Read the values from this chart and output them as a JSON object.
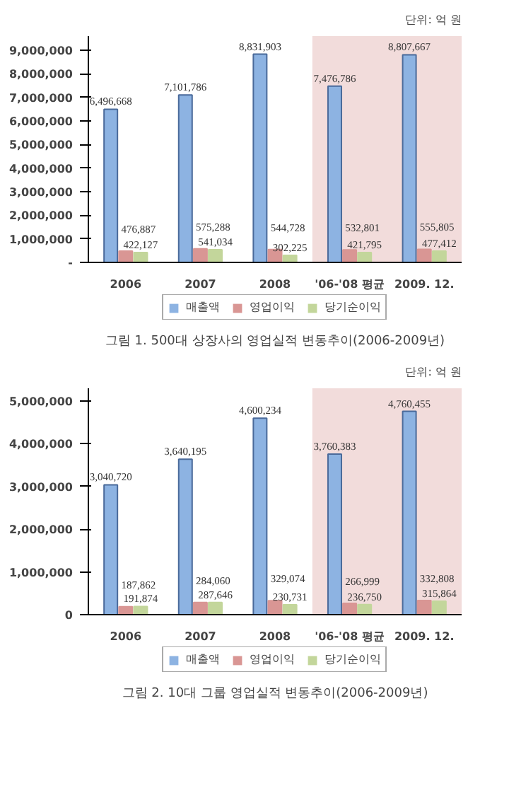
{
  "chart_data": [
    {
      "type": "bar",
      "title": "그림 1. 500대 상장사의 영업실적 변동추이(2006-2009년)",
      "annotations": [
        "단위: 억 원"
      ],
      "categories": [
        "2006",
        "2007",
        "2008",
        "'06-'08 평균",
        "2009. 12."
      ],
      "series": [
        {
          "name": "매출액",
          "color": "#8db3e2",
          "values": [
            6496668,
            7101786,
            8831903,
            7476786,
            8807667
          ],
          "value_labels": [
            "6,496,668",
            "7,101,786",
            "8,831,903",
            "7,476,786",
            "8,807,667"
          ]
        },
        {
          "name": "영업이익",
          "color": "#d99694",
          "values": [
            476887,
            575288,
            544728,
            532801,
            555805
          ],
          "value_labels": [
            "476,887",
            "575,288",
            "544,728",
            "532,801",
            "555,805"
          ]
        },
        {
          "name": "당기순이익",
          "color": "#c3d69b",
          "values": [
            422127,
            541034,
            302225,
            421795,
            477412
          ],
          "value_labels": [
            "422,127",
            "541,034",
            "302,225",
            "421,795",
            "477,412"
          ]
        }
      ],
      "ylim": [
        0,
        9600000
      ],
      "yticks": [
        {
          "value": 0,
          "label": "-"
        },
        {
          "value": 1000000,
          "label": "1,000,000"
        },
        {
          "value": 2000000,
          "label": "2,000,000"
        },
        {
          "value": 3000000,
          "label": "3,000,000"
        },
        {
          "value": 4000000,
          "label": "4,000,000"
        },
        {
          "value": 5000000,
          "label": "5,000,000"
        },
        {
          "value": 6000000,
          "label": "6,000,000"
        },
        {
          "value": 7000000,
          "label": "7,000,000"
        },
        {
          "value": 8000000,
          "label": "8,000,000"
        },
        {
          "value": 9000000,
          "label": "9,000,000"
        }
      ],
      "bands": [
        {
          "axis": "x",
          "from": "'06-'08 평균",
          "to": "2009. 12.",
          "color": "#f2dcdb"
        }
      ],
      "legend": "bottom",
      "grid": false
    },
    {
      "type": "bar",
      "title": "그림 2. 10대 그룹 영업실적 변동추이(2006-2009년)",
      "annotations": [
        "단위: 억 원"
      ],
      "categories": [
        "2006",
        "2007",
        "2008",
        "'06-'08 평균",
        "2009. 12."
      ],
      "series": [
        {
          "name": "매출액",
          "color": "#8db3e2",
          "values": [
            3040720,
            3640195,
            4600234,
            3760383,
            4760455
          ],
          "value_labels": [
            "3,040,720",
            "3,640,195",
            "4,600,234",
            "3,760,383",
            "4,760,455"
          ]
        },
        {
          "name": "영업이익",
          "color": "#d99694",
          "values": [
            187862,
            284060,
            329074,
            266999,
            332808
          ],
          "value_labels": [
            "187,862",
            "284,060",
            "329,074",
            "266,999",
            "332,808"
          ]
        },
        {
          "name": "당기순이익",
          "color": "#c3d69b",
          "values": [
            191874,
            287646,
            230731,
            236750,
            315864
          ],
          "value_labels": [
            "191,874",
            "287,646",
            "230,731",
            "236,750",
            "315,864"
          ]
        }
      ],
      "ylim": [
        0,
        5300000
      ],
      "yticks": [
        {
          "value": 0,
          "label": "0"
        },
        {
          "value": 1000000,
          "label": "1,000,000"
        },
        {
          "value": 2000000,
          "label": "2,000,000"
        },
        {
          "value": 3000000,
          "label": "3,000,000"
        },
        {
          "value": 4000000,
          "label": "4,000,000"
        },
        {
          "value": 5000000,
          "label": "5,000,000"
        }
      ],
      "bands": [
        {
          "axis": "x",
          "from": "'06-'08 평균",
          "to": "2009. 12.",
          "color": "#f2dcdb"
        }
      ],
      "legend": "bottom",
      "grid": false
    }
  ]
}
